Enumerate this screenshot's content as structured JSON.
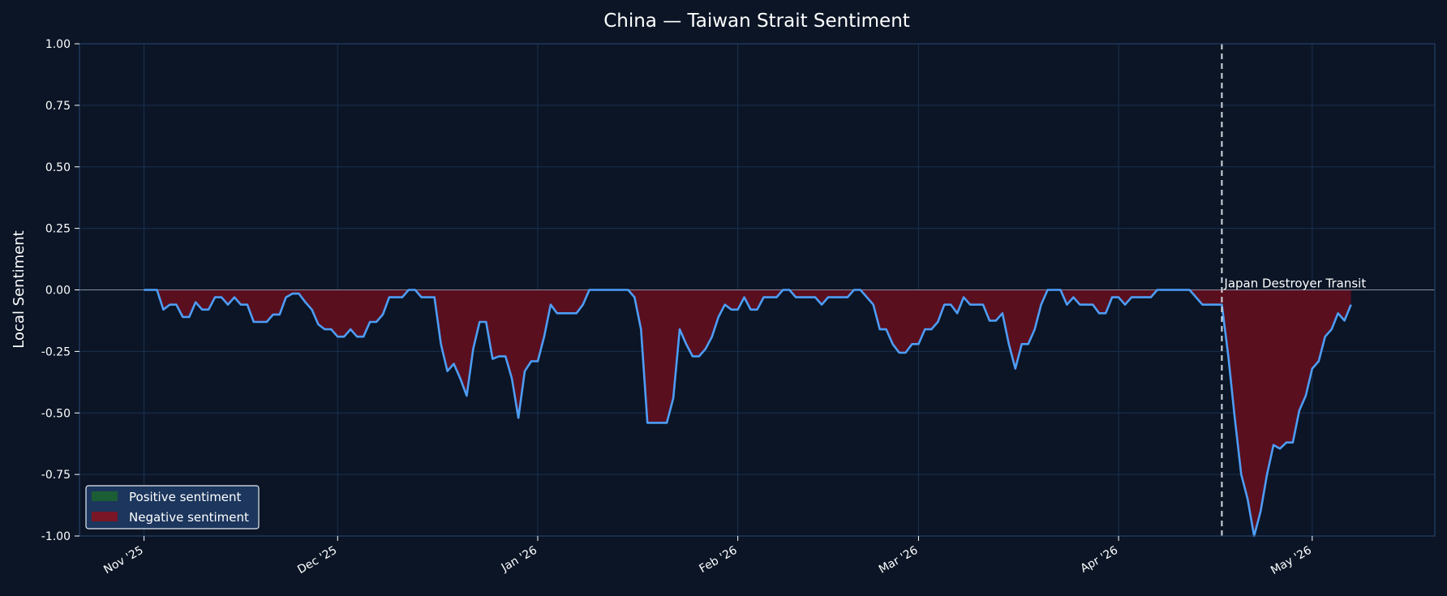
{
  "chart_data": {
    "type": "area",
    "title": "China — Taiwan Strait Sentiment",
    "xlabel": "",
    "ylabel": "Local Sentiment",
    "ylim": [
      -1.0,
      1.0
    ],
    "yticks": [
      "1.00",
      "0.75",
      "0.50",
      "0.25",
      "0.00",
      "-0.25",
      "-0.50",
      "-0.75",
      "-1.00"
    ],
    "xlim": [
      "2025-10-22",
      "2026-05-20"
    ],
    "xticks": [
      {
        "date": "2025-11-01",
        "label": "Nov '25"
      },
      {
        "date": "2025-12-01",
        "label": "Dec '25"
      },
      {
        "date": "2026-01-01",
        "label": "Jan '26"
      },
      {
        "date": "2026-02-01",
        "label": "Feb '26"
      },
      {
        "date": "2026-03-01",
        "label": "Mar '26"
      },
      {
        "date": "2026-04-01",
        "label": "Apr '26"
      },
      {
        "date": "2026-05-01",
        "label": "May '26"
      }
    ],
    "grid": true,
    "legend": {
      "placement": "bottom-left",
      "entries": [
        {
          "label": "Positive sentiment",
          "color": "#1b5e35"
        },
        {
          "label": "Negative sentiment",
          "color": "#7a1626"
        }
      ]
    },
    "annotation": {
      "date": "2026-04-17",
      "label": "Japan Destroyer Transit"
    },
    "colors": {
      "line": "#4d9df5",
      "negative_fill": "#5a0f1f",
      "positive_fill": "#1b5e35",
      "background": "#0b1526"
    },
    "series": [
      {
        "values": [
          {
            "x": "2025-11-01",
            "y": 0.0
          },
          {
            "x": "2025-11-03",
            "y": 0.0
          },
          {
            "x": "2025-11-04",
            "y": -0.08
          },
          {
            "x": "2025-11-05",
            "y": -0.06
          },
          {
            "x": "2025-11-06",
            "y": -0.06
          },
          {
            "x": "2025-11-07",
            "y": -0.11
          },
          {
            "x": "2025-11-08",
            "y": -0.11
          },
          {
            "x": "2025-11-09",
            "y": -0.05
          },
          {
            "x": "2025-11-10",
            "y": -0.08
          },
          {
            "x": "2025-11-11",
            "y": -0.08
          },
          {
            "x": "2025-11-12",
            "y": -0.03
          },
          {
            "x": "2025-11-13",
            "y": -0.03
          },
          {
            "x": "2025-11-14",
            "y": -0.06
          },
          {
            "x": "2025-11-15",
            "y": -0.03
          },
          {
            "x": "2025-11-16",
            "y": -0.06
          },
          {
            "x": "2025-11-17",
            "y": -0.06
          },
          {
            "x": "2025-11-18",
            "y": -0.13
          },
          {
            "x": "2025-11-19",
            "y": -0.13
          },
          {
            "x": "2025-11-20",
            "y": -0.13
          },
          {
            "x": "2025-11-21",
            "y": -0.1
          },
          {
            "x": "2025-11-22",
            "y": -0.1
          },
          {
            "x": "2025-11-23",
            "y": -0.03
          },
          {
            "x": "2025-11-24",
            "y": -0.015
          },
          {
            "x": "2025-11-25",
            "y": -0.015
          },
          {
            "x": "2025-11-26",
            "y": -0.05
          },
          {
            "x": "2025-11-27",
            "y": -0.08
          },
          {
            "x": "2025-11-28",
            "y": -0.14
          },
          {
            "x": "2025-11-29",
            "y": -0.16
          },
          {
            "x": "2025-11-30",
            "y": -0.16
          },
          {
            "x": "2025-12-01",
            "y": -0.19
          },
          {
            "x": "2025-12-02",
            "y": -0.19
          },
          {
            "x": "2025-12-03",
            "y": -0.16
          },
          {
            "x": "2025-12-04",
            "y": -0.19
          },
          {
            "x": "2025-12-05",
            "y": -0.19
          },
          {
            "x": "2025-12-06",
            "y": -0.13
          },
          {
            "x": "2025-12-07",
            "y": -0.13
          },
          {
            "x": "2025-12-08",
            "y": -0.1
          },
          {
            "x": "2025-12-09",
            "y": -0.03
          },
          {
            "x": "2025-12-10",
            "y": -0.03
          },
          {
            "x": "2025-12-11",
            "y": -0.03
          },
          {
            "x": "2025-12-12",
            "y": 0.0
          },
          {
            "x": "2025-12-13",
            "y": 0.0
          },
          {
            "x": "2025-12-14",
            "y": -0.03
          },
          {
            "x": "2025-12-15",
            "y": -0.03
          },
          {
            "x": "2025-12-16",
            "y": -0.03
          },
          {
            "x": "2025-12-17",
            "y": -0.22
          },
          {
            "x": "2025-12-18",
            "y": -0.33
          },
          {
            "x": "2025-12-19",
            "y": -0.3
          },
          {
            "x": "2025-12-20",
            "y": -0.36
          },
          {
            "x": "2025-12-21",
            "y": -0.43
          },
          {
            "x": "2025-12-22",
            "y": -0.24
          },
          {
            "x": "2025-12-23",
            "y": -0.13
          },
          {
            "x": "2025-12-24",
            "y": -0.13
          },
          {
            "x": "2025-12-25",
            "y": -0.28
          },
          {
            "x": "2025-12-26",
            "y": -0.27
          },
          {
            "x": "2025-12-27",
            "y": -0.27
          },
          {
            "x": "2025-12-28",
            "y": -0.36
          },
          {
            "x": "2025-12-29",
            "y": -0.52
          },
          {
            "x": "2025-12-30",
            "y": -0.33
          },
          {
            "x": "2025-12-31",
            "y": -0.29
          },
          {
            "x": "2026-01-01",
            "y": -0.29
          },
          {
            "x": "2026-01-02",
            "y": -0.19
          },
          {
            "x": "2026-01-03",
            "y": -0.06
          },
          {
            "x": "2026-01-04",
            "y": -0.095
          },
          {
            "x": "2026-01-05",
            "y": -0.095
          },
          {
            "x": "2026-01-06",
            "y": -0.095
          },
          {
            "x": "2026-01-07",
            "y": -0.095
          },
          {
            "x": "2026-01-08",
            "y": -0.06
          },
          {
            "x": "2026-01-09",
            "y": 0.0
          },
          {
            "x": "2026-01-10",
            "y": 0.0
          },
          {
            "x": "2026-01-15",
            "y": 0.0
          },
          {
            "x": "2026-01-16",
            "y": -0.03
          },
          {
            "x": "2026-01-17",
            "y": -0.16
          },
          {
            "x": "2026-01-18",
            "y": -0.54
          },
          {
            "x": "2026-01-19",
            "y": -0.54
          },
          {
            "x": "2026-01-20",
            "y": -0.54
          },
          {
            "x": "2026-01-21",
            "y": -0.54
          },
          {
            "x": "2026-01-22",
            "y": -0.44
          },
          {
            "x": "2026-01-23",
            "y": -0.16
          },
          {
            "x": "2026-01-24",
            "y": -0.22
          },
          {
            "x": "2026-01-25",
            "y": -0.27
          },
          {
            "x": "2026-01-26",
            "y": -0.27
          },
          {
            "x": "2026-01-27",
            "y": -0.24
          },
          {
            "x": "2026-01-28",
            "y": -0.19
          },
          {
            "x": "2026-01-29",
            "y": -0.11
          },
          {
            "x": "2026-01-30",
            "y": -0.06
          },
          {
            "x": "2026-01-31",
            "y": -0.08
          },
          {
            "x": "2026-02-01",
            "y": -0.08
          },
          {
            "x": "2026-02-02",
            "y": -0.03
          },
          {
            "x": "2026-02-03",
            "y": -0.08
          },
          {
            "x": "2026-02-04",
            "y": -0.08
          },
          {
            "x": "2026-02-05",
            "y": -0.03
          },
          {
            "x": "2026-02-06",
            "y": -0.03
          },
          {
            "x": "2026-02-07",
            "y": -0.03
          },
          {
            "x": "2026-02-08",
            "y": 0.0
          },
          {
            "x": "2026-02-09",
            "y": 0.0
          },
          {
            "x": "2026-02-10",
            "y": -0.03
          },
          {
            "x": "2026-02-11",
            "y": -0.03
          },
          {
            "x": "2026-02-12",
            "y": -0.03
          },
          {
            "x": "2026-02-13",
            "y": -0.03
          },
          {
            "x": "2026-02-14",
            "y": -0.06
          },
          {
            "x": "2026-02-15",
            "y": -0.03
          },
          {
            "x": "2026-02-16",
            "y": -0.03
          },
          {
            "x": "2026-02-17",
            "y": -0.03
          },
          {
            "x": "2026-02-18",
            "y": -0.03
          },
          {
            "x": "2026-02-19",
            "y": 0.0
          },
          {
            "x": "2026-02-20",
            "y": 0.0
          },
          {
            "x": "2026-02-21",
            "y": -0.03
          },
          {
            "x": "2026-02-22",
            "y": -0.06
          },
          {
            "x": "2026-02-23",
            "y": -0.16
          },
          {
            "x": "2026-02-24",
            "y": -0.16
          },
          {
            "x": "2026-02-25",
            "y": -0.22
          },
          {
            "x": "2026-02-26",
            "y": -0.255
          },
          {
            "x": "2026-02-27",
            "y": -0.255
          },
          {
            "x": "2026-02-28",
            "y": -0.22
          },
          {
            "x": "2026-03-01",
            "y": -0.22
          },
          {
            "x": "2026-03-02",
            "y": -0.16
          },
          {
            "x": "2026-03-03",
            "y": -0.16
          },
          {
            "x": "2026-03-04",
            "y": -0.13
          },
          {
            "x": "2026-03-05",
            "y": -0.06
          },
          {
            "x": "2026-03-06",
            "y": -0.06
          },
          {
            "x": "2026-03-07",
            "y": -0.095
          },
          {
            "x": "2026-03-08",
            "y": -0.03
          },
          {
            "x": "2026-03-09",
            "y": -0.06
          },
          {
            "x": "2026-03-10",
            "y": -0.06
          },
          {
            "x": "2026-03-11",
            "y": -0.06
          },
          {
            "x": "2026-03-12",
            "y": -0.125
          },
          {
            "x": "2026-03-13",
            "y": -0.125
          },
          {
            "x": "2026-03-14",
            "y": -0.095
          },
          {
            "x": "2026-03-15",
            "y": -0.22
          },
          {
            "x": "2026-03-16",
            "y": -0.32
          },
          {
            "x": "2026-03-17",
            "y": -0.22
          },
          {
            "x": "2026-03-18",
            "y": -0.22
          },
          {
            "x": "2026-03-19",
            "y": -0.16
          },
          {
            "x": "2026-03-20",
            "y": -0.06
          },
          {
            "x": "2026-03-21",
            "y": 0.0
          },
          {
            "x": "2026-03-22",
            "y": 0.0
          },
          {
            "x": "2026-03-23",
            "y": 0.0
          },
          {
            "x": "2026-03-24",
            "y": -0.06
          },
          {
            "x": "2026-03-25",
            "y": -0.03
          },
          {
            "x": "2026-03-26",
            "y": -0.06
          },
          {
            "x": "2026-03-27",
            "y": -0.06
          },
          {
            "x": "2026-03-28",
            "y": -0.06
          },
          {
            "x": "2026-03-29",
            "y": -0.095
          },
          {
            "x": "2026-03-30",
            "y": -0.095
          },
          {
            "x": "2026-03-31",
            "y": -0.03
          },
          {
            "x": "2026-04-01",
            "y": -0.03
          },
          {
            "x": "2026-04-02",
            "y": -0.06
          },
          {
            "x": "2026-04-03",
            "y": -0.03
          },
          {
            "x": "2026-04-04",
            "y": -0.03
          },
          {
            "x": "2026-04-05",
            "y": -0.03
          },
          {
            "x": "2026-04-06",
            "y": -0.03
          },
          {
            "x": "2026-04-07",
            "y": 0.0
          },
          {
            "x": "2026-04-12",
            "y": 0.0
          },
          {
            "x": "2026-04-13",
            "y": -0.03
          },
          {
            "x": "2026-04-14",
            "y": -0.06
          },
          {
            "x": "2026-04-15",
            "y": -0.06
          },
          {
            "x": "2026-04-16",
            "y": -0.06
          },
          {
            "x": "2026-04-17",
            "y": -0.06
          },
          {
            "x": "2026-04-18",
            "y": -0.27
          },
          {
            "x": "2026-04-19",
            "y": -0.52
          },
          {
            "x": "2026-04-20",
            "y": -0.75
          },
          {
            "x": "2026-04-21",
            "y": -0.85
          },
          {
            "x": "2026-04-22",
            "y": -1.0
          },
          {
            "x": "2026-04-23",
            "y": -0.9
          },
          {
            "x": "2026-04-24",
            "y": -0.75
          },
          {
            "x": "2026-04-25",
            "y": -0.63
          },
          {
            "x": "2026-04-26",
            "y": -0.645
          },
          {
            "x": "2026-04-27",
            "y": -0.62
          },
          {
            "x": "2026-04-28",
            "y": -0.62
          },
          {
            "x": "2026-04-29",
            "y": -0.49
          },
          {
            "x": "2026-04-30",
            "y": -0.43
          },
          {
            "x": "2026-05-01",
            "y": -0.32
          },
          {
            "x": "2026-05-02",
            "y": -0.29
          },
          {
            "x": "2026-05-03",
            "y": -0.19
          },
          {
            "x": "2026-05-04",
            "y": -0.16
          },
          {
            "x": "2026-05-05",
            "y": -0.095
          },
          {
            "x": "2026-05-06",
            "y": -0.125
          },
          {
            "x": "2026-05-07",
            "y": -0.06
          }
        ]
      }
    ]
  }
}
